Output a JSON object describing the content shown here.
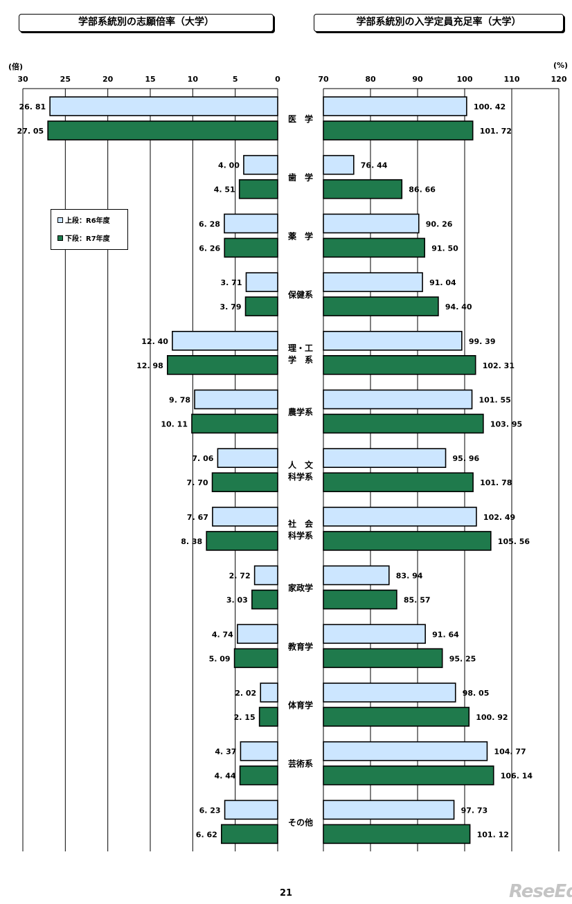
{
  "titles": {
    "left": "学部系統別の志願倍率（大学）",
    "right": "学部系統別の入学定員充足率（大学）"
  },
  "units": {
    "left": "(倍)",
    "right": "(%)"
  },
  "legend": {
    "r6": "上段：R6年度",
    "r7": "下段：R7年度"
  },
  "colors": {
    "r6_fill": "#cce6ff",
    "r7_fill": "#1f7a4c",
    "grid": "#000000"
  },
  "page_number": "21",
  "watermark": "ReseEd",
  "chart_data": [
    {
      "type": "bar",
      "orientation": "horizontal",
      "x_direction": "reversed",
      "xlim": [
        0,
        30
      ],
      "ticks": [
        "0",
        "5",
        "10",
        "15",
        "20",
        "25",
        "30"
      ],
      "categories": [
        "医 学",
        "歯 学",
        "薬 学",
        "保健系",
        "理・工 学 系",
        "農学系",
        "人 文 科学系",
        "社 会 科学系",
        "家政学",
        "教育学",
        "体育学",
        "芸術系",
        "その他"
      ],
      "series": [
        {
          "name": "上段：R6年度",
          "values": [
            26.81,
            4.0,
            6.28,
            3.71,
            12.4,
            9.78,
            7.06,
            7.67,
            2.72,
            4.74,
            2.02,
            4.37,
            6.23
          ],
          "labels": [
            "26. 81",
            "4. 00",
            "6. 28",
            "3. 71",
            "12. 40",
            "9. 78",
            "7. 06",
            "7. 67",
            "2. 72",
            "4. 74",
            "2. 02",
            "4. 37",
            "6. 23"
          ]
        },
        {
          "name": "下段：R7年度",
          "values": [
            27.05,
            4.51,
            6.26,
            3.79,
            12.98,
            10.11,
            7.7,
            8.38,
            3.03,
            5.09,
            2.15,
            4.44,
            6.62
          ],
          "labels": [
            "27. 05",
            "4. 51",
            "6. 26",
            "3. 79",
            "12. 98",
            "10. 11",
            "7. 70",
            "8. 38",
            "3. 03",
            "5. 09",
            "2. 15",
            "4. 44",
            "6. 62"
          ]
        }
      ],
      "grid": "vertical"
    },
    {
      "type": "bar",
      "orientation": "horizontal",
      "xlim": [
        70,
        120
      ],
      "ticks": [
        "70",
        "80",
        "90",
        "100",
        "110",
        "120"
      ],
      "series": [
        {
          "name": "上段：R6年度",
          "values": [
            100.42,
            76.44,
            90.26,
            91.04,
            99.39,
            101.55,
            95.96,
            102.49,
            83.94,
            91.64,
            98.05,
            104.77,
            97.73
          ],
          "labels": [
            "100. 42",
            "76. 44",
            "90. 26",
            "91. 04",
            "99. 39",
            "101. 55",
            "95. 96",
            "102. 49",
            "83. 94",
            "91. 64",
            "98. 05",
            "104. 77",
            "97. 73"
          ]
        },
        {
          "name": "下段：R7年度",
          "values": [
            101.72,
            86.66,
            91.5,
            94.4,
            102.31,
            103.95,
            101.78,
            105.56,
            85.57,
            95.25,
            100.92,
            106.14,
            101.12
          ],
          "labels": [
            "101. 72",
            "86. 66",
            "91. 50",
            "94. 40",
            "102. 31",
            "103. 95",
            "101. 78",
            "105. 56",
            "85. 57",
            "95. 25",
            "100. 92",
            "106. 14",
            "101. 12"
          ]
        }
      ],
      "grid": "vertical"
    }
  ]
}
